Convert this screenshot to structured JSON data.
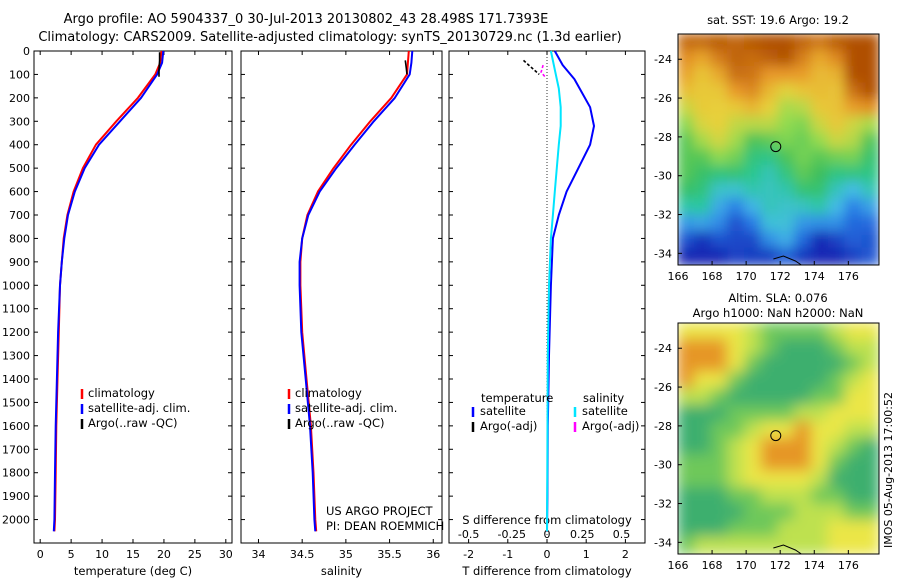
{
  "title_line1": "Argo profile: AO 5904337_0 30-Jul-2013 20130802_43 28.498S 171.7393E",
  "title_line2": "Climatology: CARS2009. Satellite-adjusted climatology: synTS_20130729.nc (1.3d earlier)",
  "project_line1": "US ARGO PROJECT",
  "project_line2": "PI: DEAN ROEMMICH",
  "sst_title": "sat. SST: 19.6  Argo: 19.2",
  "sla_title1": "Altim. SLA: 0.076",
  "sla_title2": "Argo h1000: NaN h2000: NaN",
  "watermark": "IMOS 05-Aug-2013 17:00:52",
  "colors": {
    "climatology": "#ff0000",
    "satellite": "#0000ff",
    "argo": "#000000",
    "sat_salinity": "#00e5ff",
    "argo_salinity": "#ff00ff"
  },
  "chart_data": [
    {
      "type": "line",
      "panel": "temperature",
      "xlabel": "temperature (deg C)",
      "ylabel": "",
      "xlim": [
        -1,
        31
      ],
      "ylim": [
        2100,
        0
      ],
      "xticks": [
        0,
        5,
        10,
        15,
        20,
        25,
        30
      ],
      "yticks": [
        0,
        100,
        200,
        300,
        400,
        500,
        600,
        700,
        800,
        900,
        1000,
        1100,
        1200,
        1300,
        1400,
        1500,
        1600,
        1700,
        1800,
        1900,
        2000
      ],
      "legend": [
        "climatology",
        "satellite-adj. clim.",
        "Argo(..raw -QC)"
      ],
      "series": [
        {
          "name": "climatology",
          "color": "climatology",
          "x": [
            19.6,
            19.4,
            18.6,
            15.8,
            12.3,
            9.0,
            6.9,
            5.4,
            4.4,
            3.8,
            3.5,
            3.2,
            3.0,
            2.8,
            2.6,
            2.5,
            2.4,
            2.3
          ],
          "y": [
            0,
            50,
            100,
            200,
            300,
            400,
            500,
            600,
            700,
            800,
            900,
            1000,
            1200,
            1400,
            1600,
            1800,
            2000,
            2050
          ]
        },
        {
          "name": "satellite-adj. clim.",
          "color": "satellite",
          "x": [
            19.9,
            19.7,
            18.9,
            16.3,
            12.9,
            9.5,
            7.2,
            5.6,
            4.5,
            3.9,
            3.5,
            3.2,
            2.9,
            2.7,
            2.5,
            2.4,
            2.3,
            2.2
          ],
          "y": [
            0,
            50,
            100,
            200,
            300,
            400,
            500,
            600,
            700,
            800,
            900,
            1000,
            1200,
            1400,
            1600,
            1800,
            2000,
            2050
          ]
        },
        {
          "name": "Argo(..raw -QC)",
          "color": "argo",
          "x": [
            19.3,
            19.3,
            19.2,
            19.2
          ],
          "y": [
            5,
            40,
            80,
            110
          ]
        }
      ]
    },
    {
      "type": "line",
      "panel": "salinity",
      "xlabel": "salinity",
      "xlim": [
        33.8,
        36.1
      ],
      "ylim": [
        2100,
        0
      ],
      "xticks": [
        34,
        34.5,
        35,
        35.5,
        36
      ],
      "xticklabels": [
        "34",
        "34.5",
        "35",
        "35.5",
        "36"
      ],
      "legend": [
        "climatology",
        "satellite-adj. clim.",
        "Argo(..raw -QC)"
      ],
      "series": [
        {
          "name": "climatology",
          "color": "climatology",
          "x": [
            35.72,
            35.71,
            35.7,
            35.52,
            35.28,
            35.06,
            34.86,
            34.68,
            34.56,
            34.5,
            34.48,
            34.48,
            34.5,
            34.55,
            34.6,
            34.63,
            34.65,
            34.66
          ],
          "y": [
            0,
            50,
            100,
            200,
            300,
            400,
            500,
            600,
            700,
            800,
            900,
            1000,
            1200,
            1400,
            1600,
            1800,
            2000,
            2050
          ]
        },
        {
          "name": "satellite-adj. clim.",
          "color": "satellite",
          "x": [
            35.76,
            35.75,
            35.73,
            35.56,
            35.32,
            35.1,
            34.89,
            34.7,
            34.57,
            34.5,
            34.47,
            34.47,
            34.49,
            34.54,
            34.59,
            34.62,
            34.64,
            34.65
          ],
          "y": [
            0,
            50,
            100,
            200,
            300,
            400,
            500,
            600,
            700,
            800,
            900,
            1000,
            1200,
            1400,
            1600,
            1800,
            2000,
            2050
          ]
        },
        {
          "name": "Argo(..raw -QC)",
          "color": "argo",
          "x": [
            35.68,
            35.69,
            35.7
          ],
          "y": [
            40,
            70,
            100
          ]
        }
      ]
    },
    {
      "type": "line",
      "panel": "difference",
      "xlabel": "T difference from climatology",
      "xlabel_top": "S difference from climatology",
      "xlim": [
        -2.5,
        2.5
      ],
      "ylim": [
        2100,
        0
      ],
      "xticks": [
        -2,
        -1,
        0,
        1,
        2
      ],
      "xticklabels": [
        "-2",
        "-1",
        "0",
        "1",
        "2"
      ],
      "xticks_top_labels": [
        "-0.5",
        "-0.25",
        "0",
        "0.25",
        "0.5"
      ],
      "legend_left_title": "temperature",
      "legend_right_title": "salinity",
      "legend": [
        "satellite",
        "Argo(-adj)",
        "satellite",
        "Argo(-adj)"
      ],
      "series": [
        {
          "name": "T satellite",
          "color": "satellite",
          "x": [
            0.2,
            0.4,
            0.7,
            0.9,
            1.1,
            1.2,
            1.1,
            0.8,
            0.5,
            0.3,
            0.15,
            0.1,
            0.05,
            0.02,
            0.01,
            0.0
          ],
          "y": [
            0,
            60,
            120,
            180,
            240,
            320,
            400,
            500,
            600,
            700,
            800,
            1000,
            1300,
            1600,
            1900,
            2050
          ]
        },
        {
          "name": "S satellite",
          "color": "sat_salinity",
          "x": [
            0.1,
            0.2,
            0.3,
            0.35,
            0.35,
            0.3,
            0.25,
            0.2,
            0.15,
            0.1,
            0.05,
            0.02,
            0.01,
            0.0
          ],
          "y": [
            0,
            80,
            160,
            240,
            320,
            400,
            500,
            600,
            700,
            800,
            1000,
            1300,
            1700,
            2050
          ]
        },
        {
          "name": "T Argo(-adj)",
          "color": "argo",
          "x": [
            -0.6,
            -0.4,
            -0.2
          ],
          "y": [
            40,
            70,
            100
          ]
        },
        {
          "name": "S Argo(-adj)",
          "color": "argo_salinity",
          "x": [
            -0.1,
            -0.15,
            -0.05
          ],
          "y": [
            60,
            90,
            110
          ]
        }
      ]
    },
    {
      "type": "heatmap",
      "panel": "sat-sst-map",
      "title": "sat. SST: 19.6  Argo: 19.2",
      "xlim": [
        166,
        177.8
      ],
      "ylim": [
        -34.6,
        -22.7
      ],
      "xticks": [
        166,
        168,
        170,
        172,
        174,
        176
      ],
      "yticks": [
        -24,
        -26,
        -28,
        -30,
        -32,
        -34
      ],
      "marker": {
        "lon": 171.74,
        "lat": -28.5
      }
    },
    {
      "type": "heatmap",
      "panel": "altimetry-sla-map",
      "title": "Altim. SLA: 0.076",
      "xlim": [
        166,
        177.8
      ],
      "ylim": [
        -34.6,
        -22.7
      ],
      "xticks": [
        166,
        168,
        170,
        172,
        174,
        176
      ],
      "yticks": [
        -24,
        -26,
        -28,
        -30,
        -32,
        -34
      ],
      "marker": {
        "lon": 171.74,
        "lat": -28.5
      }
    }
  ]
}
